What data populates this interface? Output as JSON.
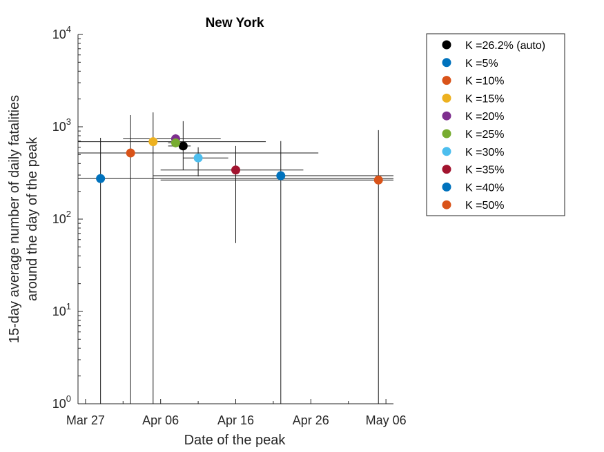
{
  "chart_data": {
    "type": "scatter",
    "title": "New York",
    "xlabel": "Date of the peak",
    "ylabel": [
      "15-day average number of daily fatalities",
      "around the day of the peak"
    ],
    "yscale": "log",
    "ylim": [
      1,
      10000
    ],
    "xlim": [
      "2020-03-26",
      "2020-05-07"
    ],
    "x_ticks": [
      {
        "date": "2020-03-27",
        "label": "Mar 27"
      },
      {
        "date": "2020-04-06",
        "label": "Apr 06"
      },
      {
        "date": "2020-04-16",
        "label": "Apr 16"
      },
      {
        "date": "2020-04-26",
        "label": "Apr 26"
      },
      {
        "date": "2020-05-06",
        "label": "May 06"
      }
    ],
    "y_ticks": [
      {
        "value": 1,
        "base": "10",
        "exp": "0"
      },
      {
        "value": 10,
        "base": "10",
        "exp": "1"
      },
      {
        "value": 100,
        "base": "10",
        "exp": "2"
      },
      {
        "value": 1000,
        "base": "10",
        "exp": "3"
      },
      {
        "value": 10000,
        "base": "10",
        "exp": "4"
      }
    ],
    "grid": false,
    "legend_position": "outside-right-top",
    "series": [
      {
        "name": "K =26.2% (auto)",
        "color": "#000000",
        "x": "2020-04-09",
        "y": 620,
        "x_range": [
          "2020-04-07",
          "2020-04-10"
        ],
        "y_range": [
          340,
          1150
        ]
      },
      {
        "name": "K =5%",
        "color": "#0072BD",
        "x": "2020-03-29",
        "y": 275,
        "x_range": [
          "2020-03-26",
          "2020-05-07"
        ],
        "y_range": [
          1,
          760
        ]
      },
      {
        "name": "K =10%",
        "color": "#D95319",
        "x": "2020-04-02",
        "y": 520,
        "x_range": [
          "2020-03-26",
          "2020-04-27"
        ],
        "y_range": [
          1,
          1340
        ]
      },
      {
        "name": "K =15%",
        "color": "#EDB120",
        "x": "2020-04-05",
        "y": 690,
        "x_range": [
          "2020-03-26",
          "2020-04-20"
        ],
        "y_range": [
          1,
          1430
        ]
      },
      {
        "name": "K =20%",
        "color": "#7E2F8E",
        "x": "2020-04-08",
        "y": 740,
        "x_range": [
          "2020-04-01",
          "2020-04-14"
        ],
        "y_range": [
          650,
          830
        ]
      },
      {
        "name": "K =25%",
        "color": "#77AC30",
        "x": "2020-04-08",
        "y": 670,
        "x_range": [
          "2020-04-07",
          "2020-04-09"
        ],
        "y_range": [
          600,
          760
        ]
      },
      {
        "name": "K =30%",
        "color": "#4DBEEE",
        "x": "2020-04-11",
        "y": 460,
        "x_range": [
          "2020-04-09",
          "2020-04-15"
        ],
        "y_range": [
          290,
          600
        ]
      },
      {
        "name": "K =35%",
        "color": "#A2142F",
        "x": "2020-04-16",
        "y": 340,
        "x_range": [
          "2020-04-06",
          "2020-04-25"
        ],
        "y_range": [
          55,
          620
        ]
      },
      {
        "name": "K =40%",
        "color": "#0072BD",
        "x": "2020-04-22",
        "y": 295,
        "x_range": [
          "2020-04-05",
          "2020-05-07"
        ],
        "y_range": [
          1,
          700
        ]
      },
      {
        "name": "K =50%",
        "color": "#D95319",
        "x": "2020-05-05",
        "y": 265,
        "x_range": [
          "2020-04-06",
          "2020-05-07"
        ],
        "y_range": [
          1,
          920
        ]
      }
    ]
  }
}
